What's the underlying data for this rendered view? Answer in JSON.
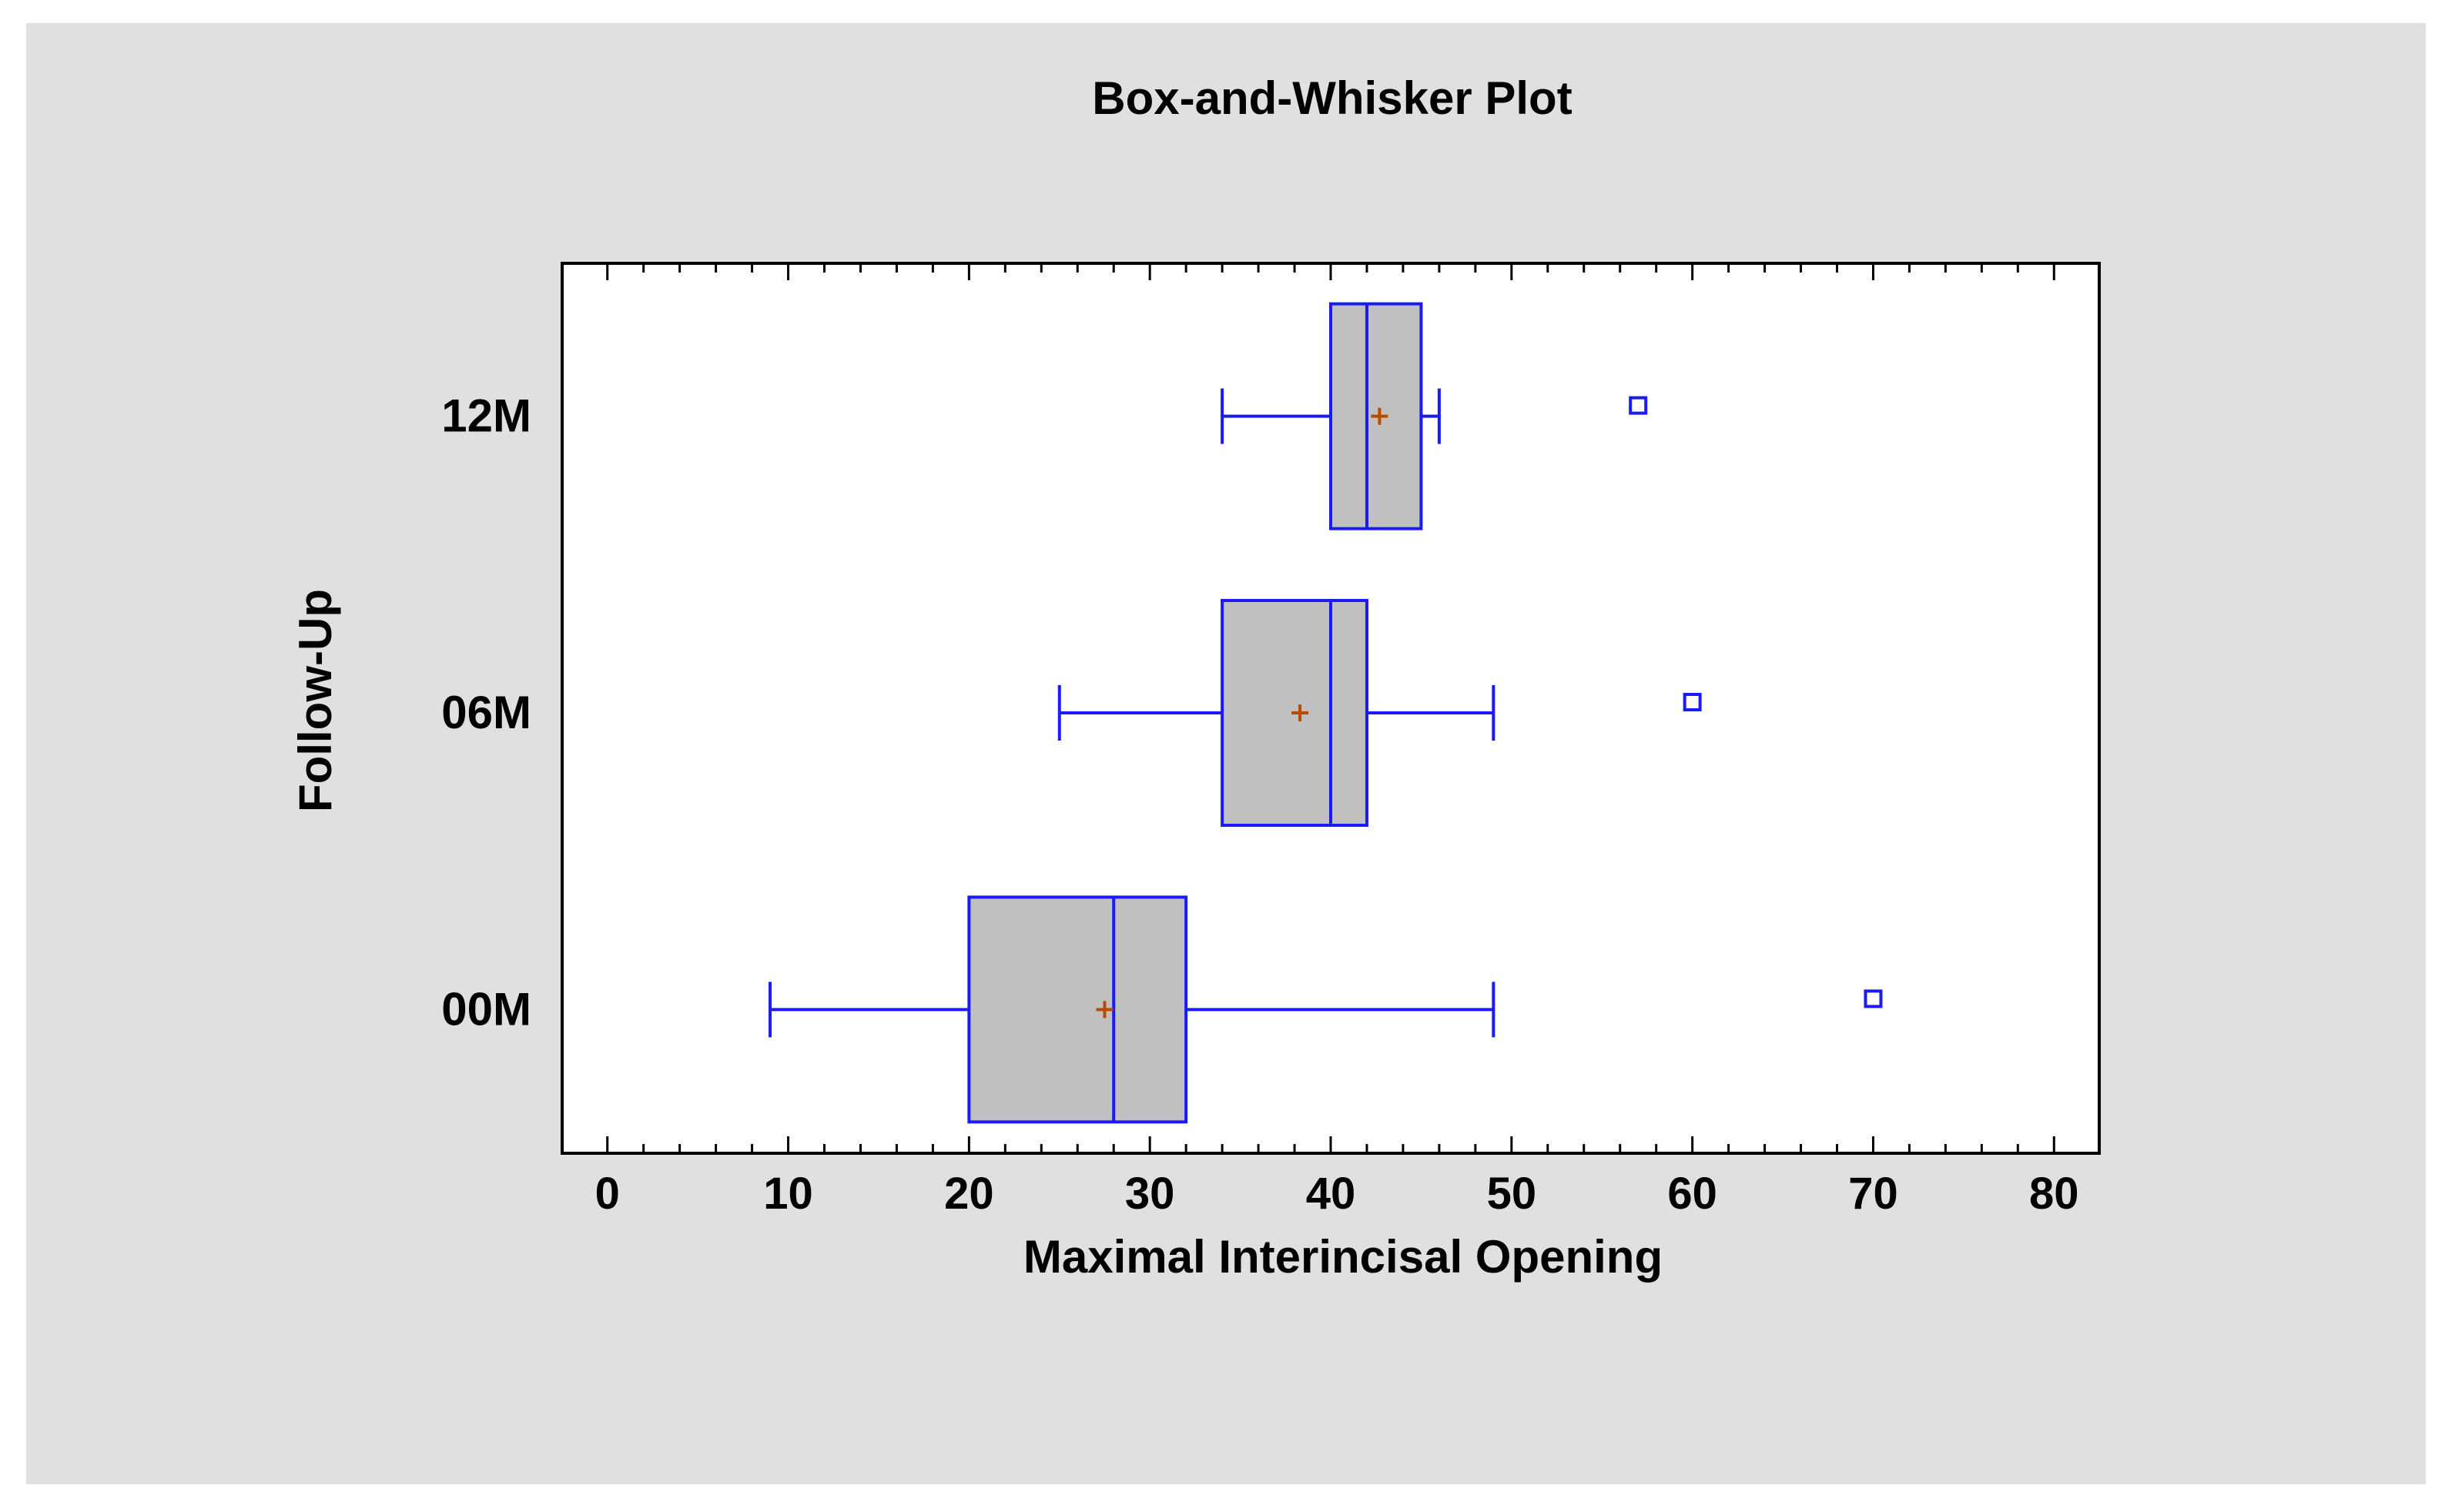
{
  "chart_data": {
    "type": "boxplot",
    "orientation": "horizontal",
    "title": "Box-and-Whisker Plot",
    "xlabel": "Maximal Interincisal Opening",
    "ylabel": "Follow-Up",
    "xlim": [
      -2.5,
      82.5
    ],
    "xticks": [
      0,
      10,
      20,
      30,
      40,
      50,
      60,
      70,
      80
    ],
    "xtick_labels": [
      "0",
      "10",
      "20",
      "30",
      "40",
      "50",
      "60",
      "70",
      "80"
    ],
    "categories": [
      "00M",
      "06M",
      "12M"
    ],
    "grid": false,
    "legend": "none",
    "colors": {
      "box_fill": "#c0c0c0",
      "box_stroke": "#1a1aff",
      "mean_marker": "#b84b00",
      "outlier": "#1a1aff",
      "outlier_inner": "#22aa22",
      "plot_bg": "#ffffff",
      "panel_bg": "#e0e0e0"
    },
    "boxes": [
      {
        "category": "00M",
        "whisker_low": 9,
        "q1": 20,
        "median": 28,
        "q3": 32,
        "whisker_high": 49,
        "mean": 27.5,
        "outliers": [
          70
        ]
      },
      {
        "category": "06M",
        "whisker_low": 25,
        "q1": 34,
        "median": 40,
        "q3": 42,
        "whisker_high": 49,
        "mean": 38.3,
        "outliers": [
          60
        ]
      },
      {
        "category": "12M",
        "whisker_low": 34,
        "q1": 40,
        "median": 42,
        "q3": 45,
        "whisker_high": 46,
        "mean": 42.7,
        "outliers": [
          57
        ]
      }
    ]
  }
}
